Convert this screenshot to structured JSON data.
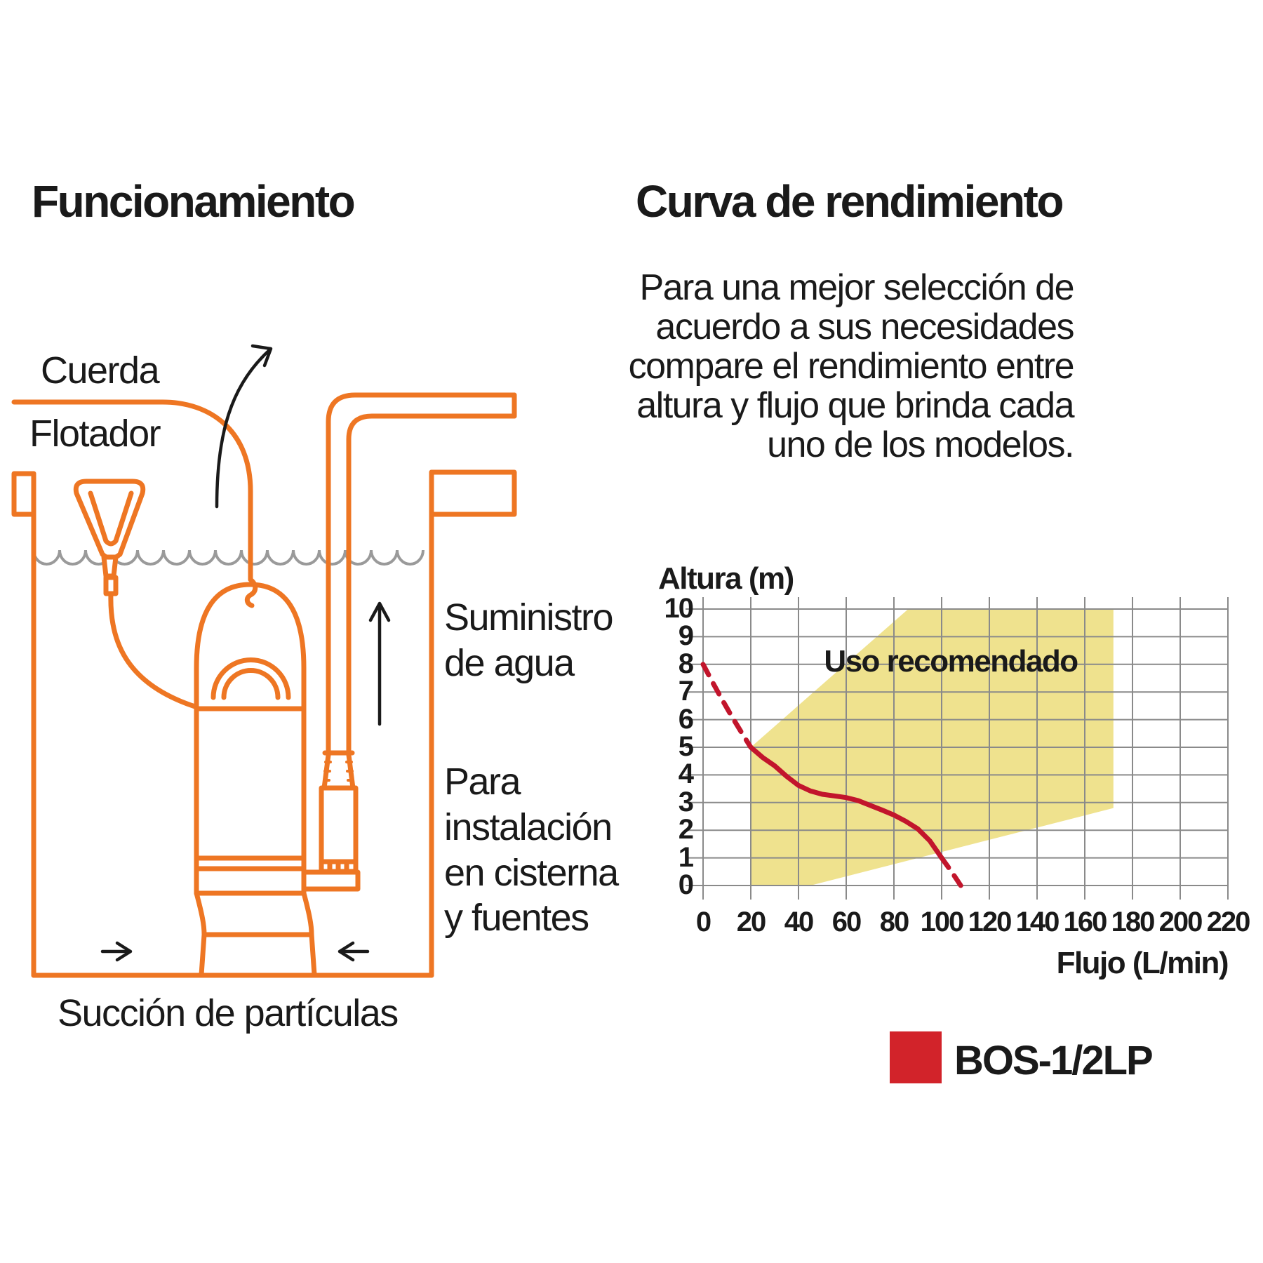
{
  "colors": {
    "orange": "#EE7623",
    "curve_red": "#C2152C",
    "legend_red": "#D2232A",
    "area_yellow": "#EFE28E",
    "grid_gray": "#8A8A8A",
    "water_gray": "#9A9A9A",
    "text": "#1A1A1A"
  },
  "left": {
    "title": "Funcionamiento",
    "labels": {
      "cuerda": "Cuerda",
      "flotador": "Flotador",
      "suministro_lines": [
        "Suministro",
        "de agua"
      ],
      "instalacion_lines": [
        "Para",
        "instalación",
        "en cisterna",
        "y fuentes"
      ],
      "succion": "Succión de partículas"
    }
  },
  "right": {
    "title": "Curva de rendimiento",
    "paragraph_lines": [
      "Para una mejor selección de",
      "acuerdo a sus necesidades",
      "compare el rendimiento entre",
      "altura y flujo que brinda cada",
      "uno de los modelos."
    ],
    "legend": {
      "model": "BOS-1/2LP",
      "color": "#D2232A"
    }
  },
  "chart_data": {
    "type": "line",
    "title": "",
    "xlabel": "Flujo (L/min)",
    "ylabel": "Altura (m)",
    "xlim": [
      0,
      220
    ],
    "ylim": [
      0,
      10
    ],
    "x_ticks": [
      0,
      20,
      40,
      60,
      80,
      100,
      120,
      140,
      160,
      180,
      200,
      220
    ],
    "y_ticks": [
      0,
      1,
      2,
      3,
      4,
      5,
      6,
      7,
      8,
      9,
      10
    ],
    "grid": true,
    "legend_position": "bottom-right",
    "series": [
      {
        "name": "BOS-1/2LP",
        "color": "#C2152C",
        "dashed_start": [
          [
            0,
            8
          ],
          [
            4,
            7.35
          ],
          [
            8,
            6.72
          ],
          [
            12,
            6.12
          ],
          [
            16,
            5.55
          ],
          [
            20,
            5
          ]
        ],
        "solid": [
          [
            20,
            5
          ],
          [
            25,
            4.63
          ],
          [
            30,
            4.33
          ],
          [
            35,
            3.95
          ],
          [
            40,
            3.62
          ],
          [
            45,
            3.42
          ],
          [
            50,
            3.3
          ],
          [
            55,
            3.24
          ],
          [
            60,
            3.18
          ],
          [
            65,
            3.07
          ],
          [
            70,
            2.9
          ],
          [
            75,
            2.73
          ],
          [
            80,
            2.55
          ],
          [
            85,
            2.32
          ],
          [
            90,
            2.05
          ],
          [
            95,
            1.62
          ],
          [
            100,
            1
          ]
        ],
        "dashed_end": [
          [
            100,
            1
          ],
          [
            104,
            0.52
          ],
          [
            108,
            0
          ]
        ]
      }
    ],
    "recommended_area": {
      "label": "Uso recomendado",
      "color": "#EFE28E",
      "polygon": [
        [
          20,
          0
        ],
        [
          20,
          5
        ],
        [
          86,
          10
        ],
        [
          172,
          10
        ],
        [
          172,
          2.8
        ],
        [
          45,
          0
        ]
      ]
    }
  }
}
